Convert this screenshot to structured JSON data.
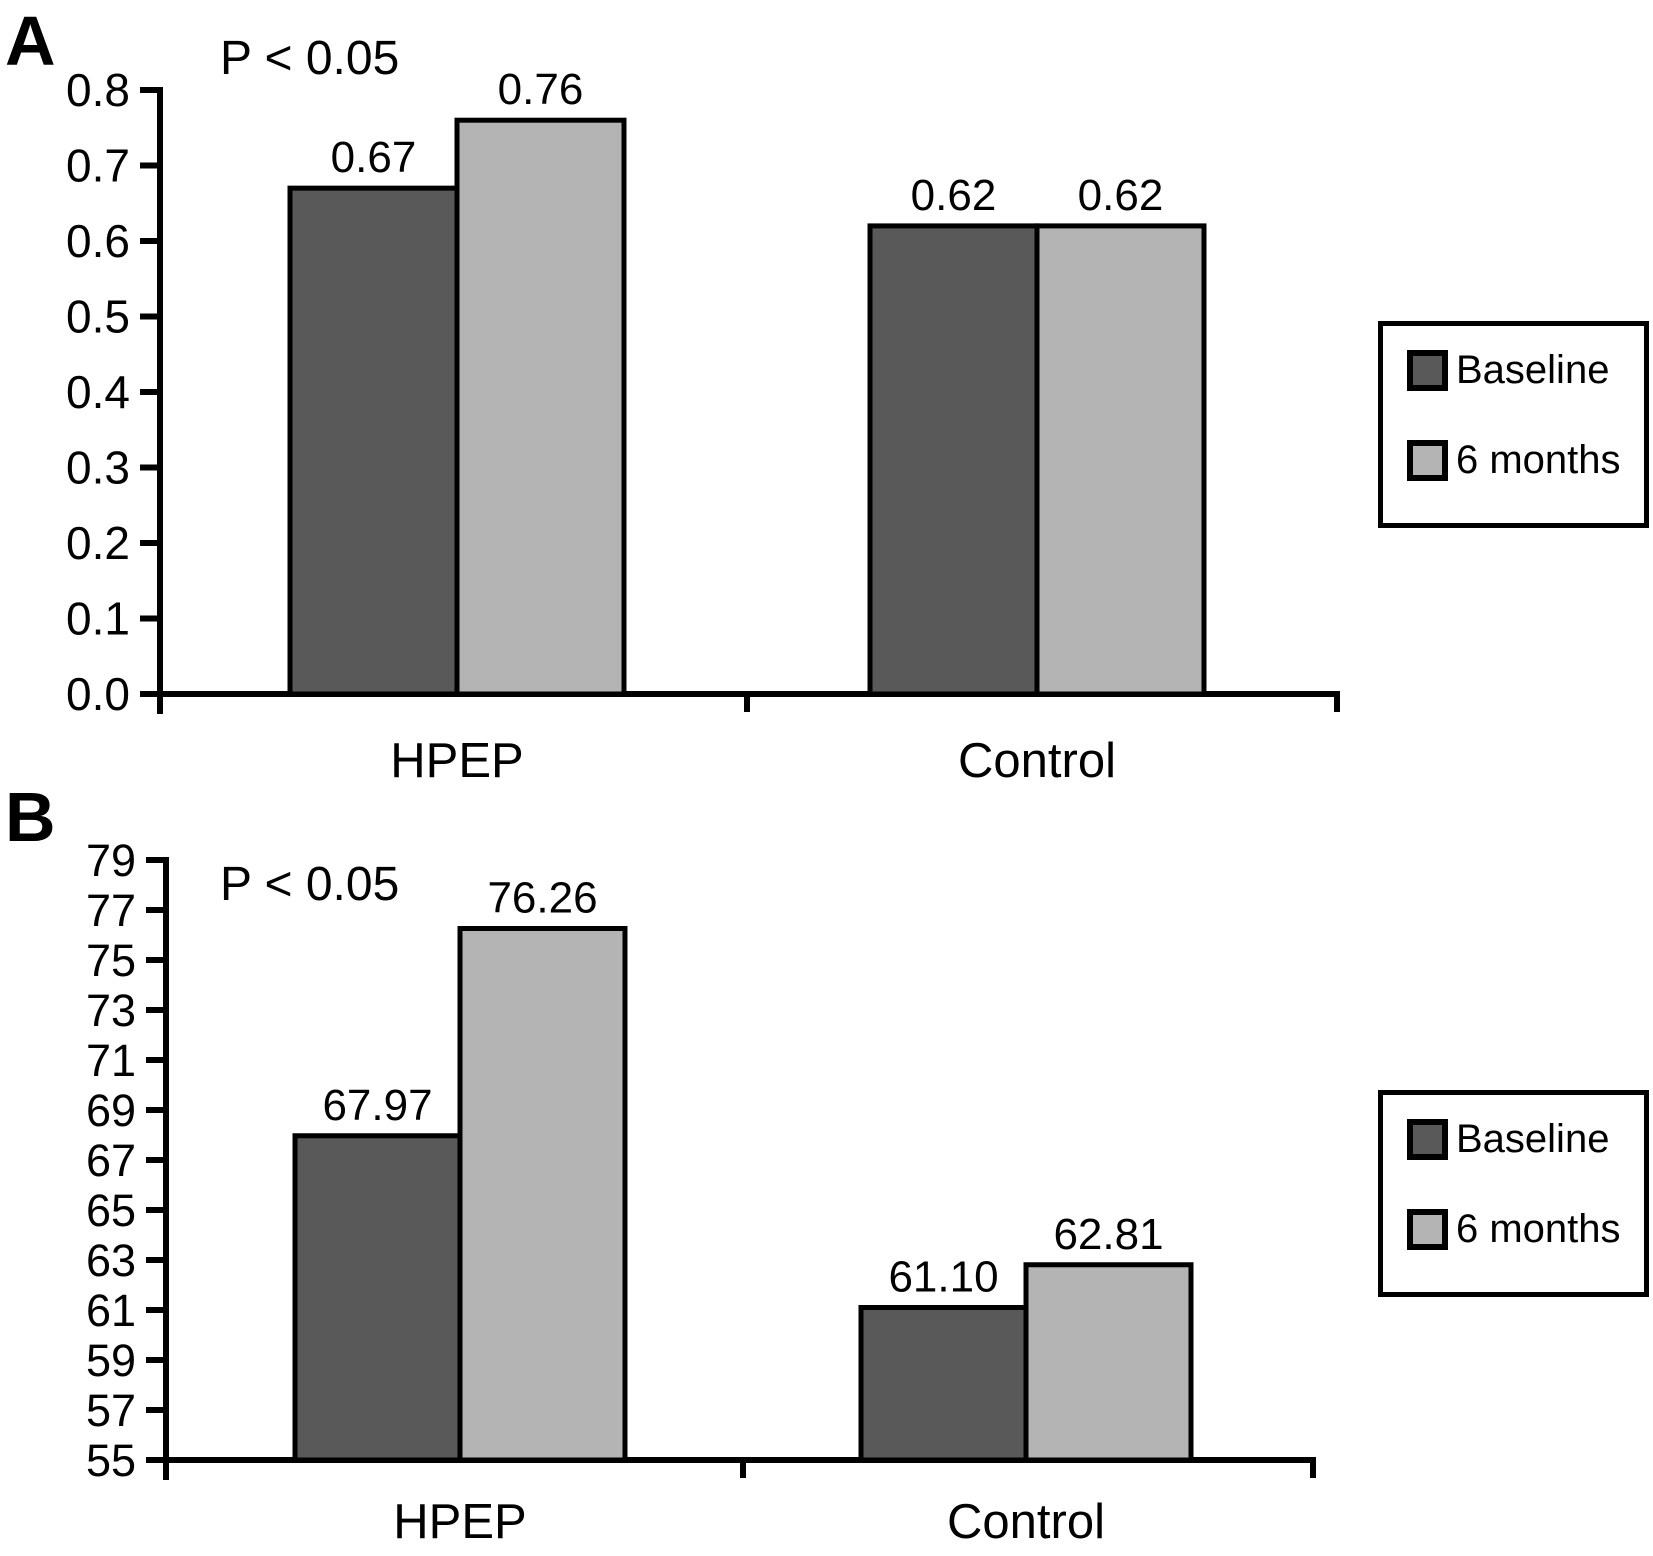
{
  "chart_data": [
    {
      "type": "bar",
      "panel_label": "A",
      "annotation": "P < 0.05",
      "categories": [
        "HPEP",
        "Control"
      ],
      "series": [
        {
          "name": "Baseline",
          "color": "#595959",
          "values": [
            0.67,
            0.62
          ],
          "value_labels": [
            "0.67",
            "0.62"
          ]
        },
        {
          "name": "6 months",
          "color": "#b4b4b4",
          "values": [
            0.76,
            0.62
          ],
          "value_labels": [
            "0.76",
            "0.62"
          ]
        }
      ],
      "ylim": [
        0.0,
        0.8
      ],
      "yticks": [
        "0.0",
        "0.1",
        "0.2",
        "0.3",
        "0.4",
        "0.5",
        "0.6",
        "0.7",
        "0.8"
      ],
      "xlabel": "",
      "ylabel": "",
      "grid": false,
      "legend": [
        "Baseline",
        "6 months"
      ],
      "legend_position": "right"
    },
    {
      "type": "bar",
      "panel_label": "B",
      "annotation": "P < 0.05",
      "categories": [
        "HPEP",
        "Control"
      ],
      "series": [
        {
          "name": "Baseline",
          "color": "#595959",
          "values": [
            67.97,
            61.1
          ],
          "value_labels": [
            "67.97",
            "61.10"
          ]
        },
        {
          "name": "6 months",
          "color": "#b4b4b4",
          "values": [
            76.26,
            62.81
          ],
          "value_labels": [
            "76.26",
            "62.81"
          ]
        }
      ],
      "ylim": [
        55,
        79
      ],
      "yticks": [
        "55",
        "57",
        "59",
        "61",
        "63",
        "65",
        "67",
        "69",
        "71",
        "73",
        "75",
        "77",
        "79"
      ],
      "xlabel": "",
      "ylabel": "",
      "grid": false,
      "legend": [
        "Baseline",
        "6 months"
      ],
      "legend_position": "right"
    }
  ],
  "colors": {
    "axis": "#000000",
    "bar_outline": "#000000",
    "baseline_fill": "#595959",
    "six_months_fill": "#b4b4b4",
    "background": "#ffffff"
  }
}
